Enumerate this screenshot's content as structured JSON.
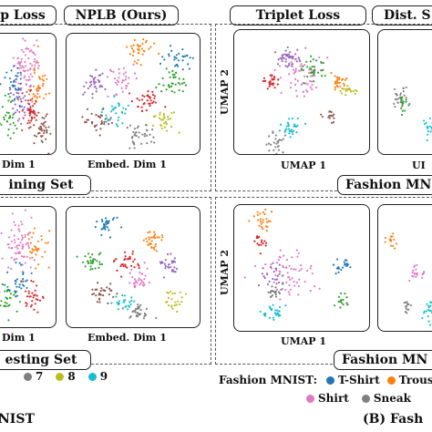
{
  "left_panel": {
    "titles": [
      "p Loss",
      "NPLB (Ours)"
    ],
    "xlabels_top": [
      "Dim 1",
      "Embed. Dim 1"
    ],
    "xlabels_bottom": [
      "Dim 1",
      "Embed. Dim 1"
    ],
    "set_labels": [
      "ining Set",
      "esting Set"
    ],
    "legend_items": [
      {
        "label": "7",
        "color": "#7f7f7f"
      },
      {
        "label": "8",
        "color": "#bcbd22"
      },
      {
        "label": "9",
        "color": "#17becf"
      }
    ],
    "caption": "NIST"
  },
  "right_panel": {
    "titles": [
      "Triplet Loss",
      "Dist. S"
    ],
    "axis_x": "UMAP 1",
    "axis_x_cut": "UI",
    "axis_y": "UMAP 2",
    "set_labels": [
      "Fashion MNI",
      "Fashion MN"
    ],
    "legend_title": "Fashion MNIST:",
    "legend_items": [
      {
        "label": "T-Shirt",
        "color": "#1f77b4"
      },
      {
        "label": "Trouse",
        "color": "#ff7f0e"
      },
      {
        "label": "Shirt",
        "color": "#e377c2"
      },
      {
        "label": "Sneak",
        "color": "#7f7f7f"
      }
    ],
    "caption": "(B) Fash"
  },
  "palette": [
    "#1f77b4",
    "#ff7f0e",
    "#2ca02c",
    "#d62728",
    "#9467bd",
    "#8c564b",
    "#e377c2",
    "#7f7f7f",
    "#bcbd22",
    "#17becf"
  ]
}
